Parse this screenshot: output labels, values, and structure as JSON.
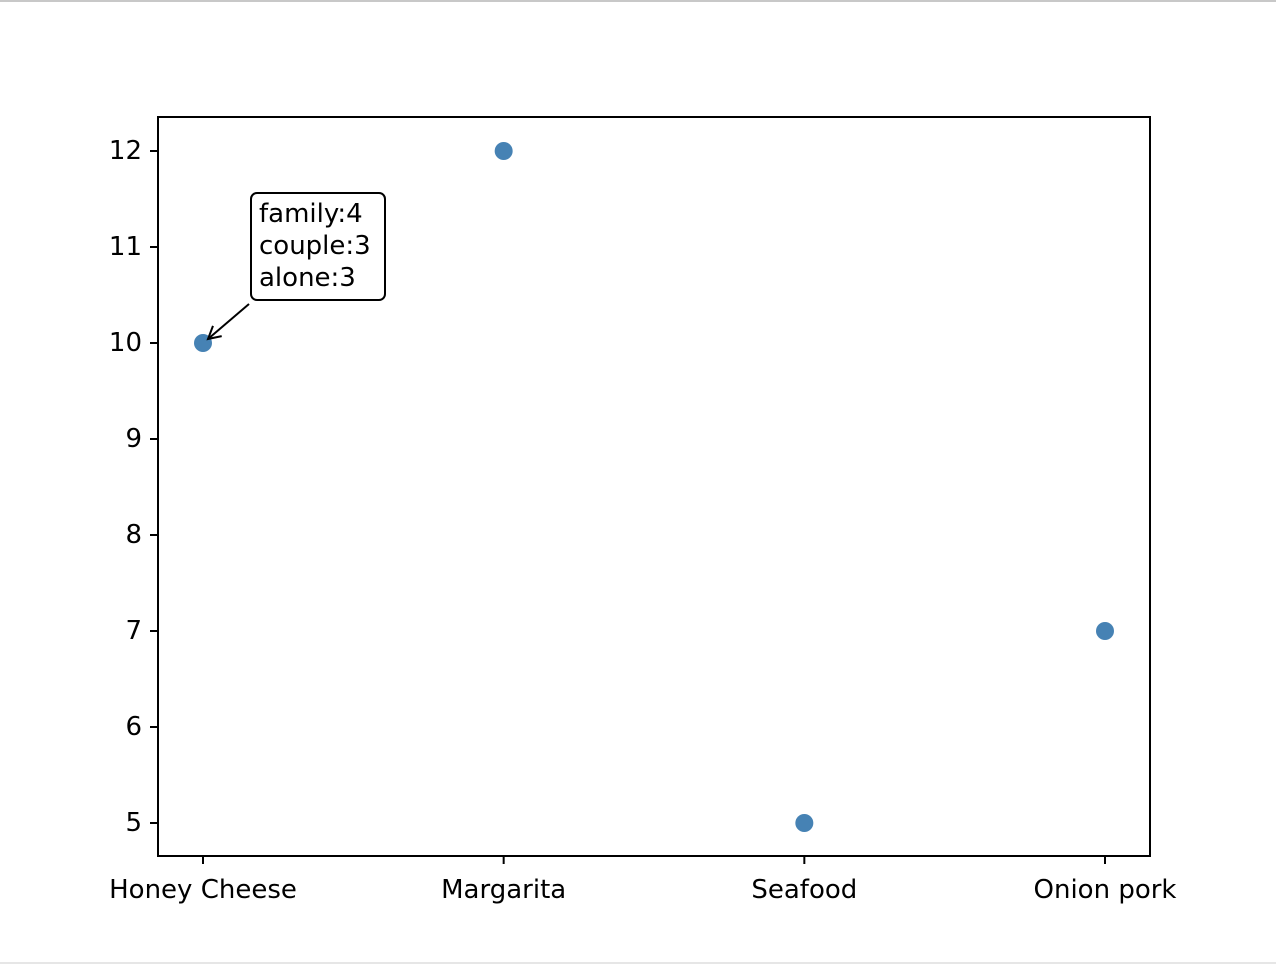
{
  "chart_data": {
    "type": "scatter",
    "categories": [
      "Honey Cheese",
      "Margarita",
      "Seafood",
      "Onion pork"
    ],
    "values": [
      10,
      12,
      5,
      7
    ],
    "title": "",
    "xlabel": "",
    "ylabel": "",
    "yticks": [
      "5",
      "6",
      "7",
      "8",
      "9",
      "10",
      "11",
      "12"
    ],
    "grid": false,
    "marker_color": "#4682b4",
    "annotation": {
      "category": "Honey Cheese",
      "value": 10,
      "lines": [
        "family:4",
        "couple:3",
        "alone:3"
      ]
    }
  }
}
